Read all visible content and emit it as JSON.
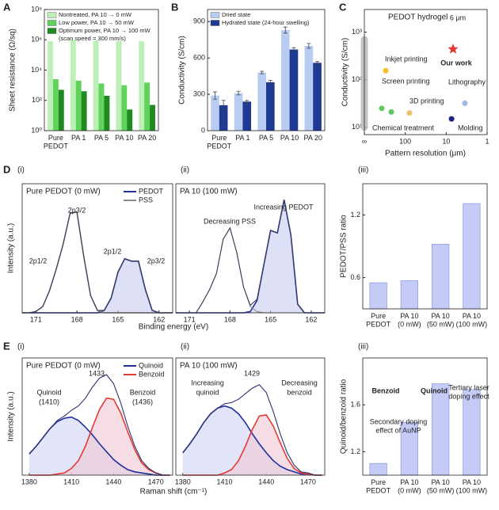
{
  "chart_data": [
    {
      "type": "bar",
      "panel": "A",
      "ylabel": "Sheet resistance (Ω/sq)",
      "yscale": "log",
      "categories": [
        "Pure\nPEDOT",
        "PA 1",
        "PA 5",
        "PA 10",
        "PA 20"
      ],
      "series": [
        {
          "name": "Nontreated, PA 10 → 0 mW",
          "color": "#bdf0b8",
          "values": [
            800000,
            1000000,
            900000,
            800000,
            800000
          ]
        },
        {
          "name": "Low power, PA 10 → 50 mW",
          "color": "#5fd35a",
          "values": [
            2500,
            2000,
            1300,
            1000,
            1500
          ]
        },
        {
          "name": "Optimum power, PA 10 → 100 mW",
          "color": "#1f8a1f",
          "values": [
            500,
            400,
            200,
            25,
            50
          ]
        }
      ],
      "legend": "upper left",
      "legend_note": "(scan speed = 300 mm/s)",
      "ylim": [
        1,
        100000000
      ],
      "yticks": [
        {
          "value": 1,
          "label": "10⁰"
        },
        {
          "value": 100,
          "label": "10²"
        },
        {
          "value": 10000,
          "label": "10⁴"
        },
        {
          "value": 1000000,
          "label": "10⁶"
        },
        {
          "value": 100000000,
          "label": "10⁸"
        }
      ]
    },
    {
      "type": "bar",
      "panel": "B",
      "ylabel": "Conductivity (S/cm)",
      "categories": [
        "Pure\nPEDOT",
        "PA 1",
        "PA 5",
        "PA 10",
        "PA 20"
      ],
      "series": [
        {
          "name": "Dried state",
          "color": "#b9cdf2",
          "values": [
            290,
            310,
            480,
            830,
            700
          ],
          "errors": [
            30,
            15,
            10,
            25,
            20
          ]
        },
        {
          "name": "Hydrated state (24-hour swelling)",
          "color": "#1f3a93",
          "values": [
            210,
            240,
            400,
            670,
            560
          ],
          "errors": [
            40,
            10,
            15,
            15,
            10
          ]
        }
      ],
      "legend": "upper left",
      "ylim": [
        0,
        1000
      ],
      "yticks": [
        0,
        300,
        600,
        900
      ]
    },
    {
      "type": "scatter",
      "panel": "C",
      "title": "PEDOT hydrogel",
      "inset_label": "6 μm",
      "xlabel": "Pattern resolution (μm)",
      "ylabel": "Conductivity (S/cm)",
      "xscale": "log",
      "yscale": "log",
      "series": [
        {
          "name": "Chemical treatment",
          "color": "#b5b5b5",
          "style": "band",
          "x": [
            1000,
            1000
          ],
          "values": [
            10,
            700
          ]
        },
        {
          "name": "Inkjet printing",
          "color": "#f2c12e",
          "x": [
            300
          ],
          "values": [
            155
          ]
        },
        {
          "name": "Screen printing",
          "color": "#5dc85d",
          "x": [
            375,
            220
          ],
          "values": [
            25,
            21
          ]
        },
        {
          "name": "3D printing",
          "color": "#e8c46a",
          "x": [
            79
          ],
          "values": [
            20
          ]
        },
        {
          "name": "Lithography",
          "color": "#9fb8e8",
          "x": [
            3.5
          ],
          "values": [
            32
          ]
        },
        {
          "name": "Molding",
          "color": "#1a237e",
          "x": [
            7.4
          ],
          "values": [
            15
          ]
        },
        {
          "name": "Our work",
          "color": "#e53935",
          "marker": "star",
          "x": [
            6.8
          ],
          "values": [
            440
          ]
        }
      ],
      "xlim": [
        1000,
        1
      ],
      "xticks": [
        {
          "value": 1000,
          "label": "∞"
        },
        100,
        10,
        1
      ],
      "ylim": [
        7,
        3000
      ],
      "yticks": [
        {
          "value": 10,
          "label": "10¹"
        },
        {
          "value": 100,
          "label": "10²"
        },
        {
          "value": 1000,
          "label": "10³"
        }
      ]
    },
    {
      "type": "line",
      "panel": "D",
      "subpanel": "(i)",
      "title": "Pure PEDOT (0 mW)",
      "ylabel": "Intensity (a.u.)",
      "xlabel": "Binding energy (eV)",
      "legend": "upper right",
      "x": [
        172,
        171.5,
        171,
        170.5,
        170,
        169.5,
        169,
        168.5,
        168,
        167.5,
        167,
        166.5,
        166,
        165.5,
        165,
        164.5,
        164,
        163.5,
        163,
        162.5,
        162,
        161.5,
        161
      ],
      "series": [
        {
          "name": "PEDOT",
          "color": "#1f2f9e",
          "fill": "#c8cdf0",
          "values": [
            0,
            0,
            0,
            0,
            0,
            0,
            0,
            0,
            0,
            0,
            0,
            0,
            0.02,
            0.12,
            0.33,
            0.44,
            0.42,
            0.42,
            0.19,
            0.02,
            0,
            0,
            0
          ]
        },
        {
          "name": "PSS",
          "color": "#8a8a8a",
          "values": [
            0,
            0,
            0.01,
            0.05,
            0.18,
            0.36,
            0.56,
            0.81,
            0.82,
            0.46,
            0.14,
            0.02,
            0,
            0,
            0,
            0,
            0,
            0,
            0,
            0,
            0,
            0,
            0
          ]
        },
        {
          "color": "#3a3f5c",
          "values": [
            0,
            0,
            0.01,
            0.05,
            0.18,
            0.36,
            0.56,
            0.81,
            0.82,
            0.46,
            0.14,
            0.02,
            0.02,
            0.12,
            0.33,
            0.44,
            0.42,
            0.42,
            0.19,
            0.02,
            0,
            0,
            0
          ]
        }
      ],
      "annotations": [
        "2p3/2",
        "2p1/2",
        "2p1/2",
        "2p3/2"
      ],
      "xlim": [
        172,
        161
      ],
      "xticks": [
        171,
        168,
        165,
        162
      ],
      "ylim": [
        0,
        1.05
      ]
    },
    {
      "type": "line",
      "subpanel": "(ii)",
      "title": "PA 10 (100 mW)",
      "x": [
        172,
        171.5,
        171,
        170.5,
        170,
        169.5,
        169,
        168.5,
        168,
        167.5,
        167,
        166.5,
        166,
        165.5,
        165,
        164.5,
        164,
        163.5,
        163,
        162.5,
        162,
        161.5,
        161
      ],
      "series": [
        {
          "color": "#1f2f9e",
          "fill": "#c8cdf0",
          "values": [
            0,
            0,
            0,
            0,
            0,
            0,
            0,
            0,
            0,
            0,
            0,
            0.01,
            0.1,
            0.39,
            0.67,
            0.65,
            0.92,
            0.63,
            0.07,
            0,
            0,
            0,
            0
          ]
        },
        {
          "color": "#8a8a8a",
          "values": [
            0,
            0,
            0,
            0,
            0.09,
            0.19,
            0.32,
            0.6,
            0.69,
            0.49,
            0.21,
            0.05,
            0.01,
            0,
            0,
            0,
            0,
            0,
            0,
            0,
            0,
            0,
            0
          ]
        },
        {
          "color": "#3a3f5c",
          "values": [
            0,
            0,
            0,
            0,
            0.09,
            0.19,
            0.32,
            0.6,
            0.69,
            0.49,
            0.21,
            0.06,
            0.11,
            0.39,
            0.67,
            0.65,
            0.92,
            0.63,
            0.07,
            0,
            0,
            0,
            0
          ]
        }
      ],
      "annotations": [
        "Decreasing PSS",
        "Increasing PEDOT"
      ],
      "xlim": [
        172,
        161
      ],
      "xticks": [
        171,
        168,
        165,
        162
      ],
      "ylim": [
        0,
        1.05
      ]
    },
    {
      "type": "bar",
      "subpanel": "(iii)",
      "ylabel": "PEDOT/PSS ratio",
      "color": "#c5cbf7",
      "categories": [
        "Pure\nPEDOT",
        "PA 10\n(0 mW)",
        "PA 10\n(50 mW)",
        "PA 10\n(100 mW)"
      ],
      "values": [
        0.55,
        0.57,
        0.92,
        1.31
      ],
      "ylim": [
        0.3,
        1.5
      ],
      "yticks": [
        0.6,
        1.2
      ]
    },
    {
      "type": "line",
      "panel": "E",
      "subpanel": "(i)",
      "title": "Pure PEDOT (0 mW)",
      "ylabel": "Intensity (a.u.)",
      "xlabel": "Raman shift (cm⁻¹)",
      "legend": "upper right",
      "x": [
        1380,
        1385,
        1390,
        1395,
        1400,
        1405,
        1410,
        1415,
        1420,
        1425,
        1430,
        1435,
        1440,
        1445,
        1450,
        1455,
        1460,
        1465,
        1470,
        1475,
        1480
      ],
      "series": [
        {
          "name": "Quinoid",
          "color": "#1f2f9e",
          "fill": "#cfd3f2",
          "values": [
            0.19,
            0.26,
            0.34,
            0.42,
            0.48,
            0.51,
            0.52,
            0.49,
            0.43,
            0.36,
            0.28,
            0.21,
            0.14,
            0.09,
            0.05,
            0.03,
            0.02,
            0.01,
            0,
            0,
            0
          ]
        },
        {
          "name": "Benzoid",
          "color": "#e53935",
          "fill": "#f0c6d3",
          "values": [
            0,
            0,
            0,
            0,
            0.01,
            0.02,
            0.06,
            0.13,
            0.26,
            0.43,
            0.59,
            0.69,
            0.68,
            0.56,
            0.39,
            0.23,
            0.11,
            0.05,
            0.02,
            0,
            0
          ]
        },
        {
          "color": "#2d3170",
          "values": [
            0.19,
            0.26,
            0.34,
            0.42,
            0.49,
            0.53,
            0.58,
            0.62,
            0.69,
            0.79,
            0.87,
            0.9,
            0.82,
            0.65,
            0.44,
            0.26,
            0.13,
            0.06,
            0.02,
            0,
            0
          ]
        }
      ],
      "annotations": [
        "1433",
        "Quinoid",
        "(1410)",
        "Benzoid",
        "(1436)"
      ],
      "xlim": [
        1375,
        1482
      ],
      "xticks": [
        1380,
        1410,
        1440,
        1470
      ],
      "ylim": [
        0,
        1.05
      ]
    },
    {
      "type": "line",
      "subpanel": "(ii)",
      "title": "PA 10 (100 mW)",
      "x": [
        1380,
        1385,
        1390,
        1395,
        1400,
        1405,
        1410,
        1415,
        1420,
        1425,
        1430,
        1435,
        1440,
        1445,
        1450,
        1455,
        1460,
        1465,
        1470,
        1475,
        1480
      ],
      "series": [
        {
          "color": "#1f2f9e",
          "fill": "#cfd3f2",
          "values": [
            0.2,
            0.28,
            0.37,
            0.47,
            0.55,
            0.6,
            0.62,
            0.6,
            0.55,
            0.47,
            0.37,
            0.28,
            0.2,
            0.13,
            0.08,
            0.05,
            0.03,
            0.01,
            0.01,
            0,
            0
          ]
        },
        {
          "color": "#e53935",
          "fill": "#f0c6d3",
          "values": [
            0,
            0,
            0,
            0,
            0,
            0,
            0.02,
            0.05,
            0.13,
            0.26,
            0.41,
            0.53,
            0.54,
            0.44,
            0.29,
            0.15,
            0.06,
            0.02,
            0.01,
            0,
            0
          ]
        },
        {
          "color": "#2d3170",
          "values": [
            0.2,
            0.28,
            0.37,
            0.47,
            0.55,
            0.6,
            0.64,
            0.65,
            0.68,
            0.73,
            0.78,
            0.81,
            0.74,
            0.57,
            0.37,
            0.2,
            0.09,
            0.03,
            0.02,
            0,
            0
          ]
        }
      ],
      "annotations": [
        "1429",
        "Increasing",
        "quinoid",
        "Decreasing",
        "benzoid"
      ],
      "xlim": [
        1375,
        1482
      ],
      "xticks": [
        1380,
        1410,
        1440,
        1470
      ],
      "ylim": [
        0,
        1.05
      ]
    },
    {
      "type": "bar",
      "subpanel": "(iii)",
      "ylabel": "Quinoid/benzoid ratio",
      "color": "#c5cbf7",
      "categories": [
        "Pure\nPEDOT",
        "PA 10\n(0 mW)",
        "PA 10\n(50 mW)",
        "PA 10\n(100 mW)"
      ],
      "values": [
        1.1,
        1.45,
        1.78,
        1.73
      ],
      "annotations": [
        "Benzoid",
        "Quinoid",
        "Tertiary laser",
        "doping effect",
        "Secondary doping",
        "effect of AuNP"
      ],
      "ylim": [
        1.0,
        2.0
      ],
      "yticks": [
        1.2,
        1.6
      ]
    }
  ]
}
